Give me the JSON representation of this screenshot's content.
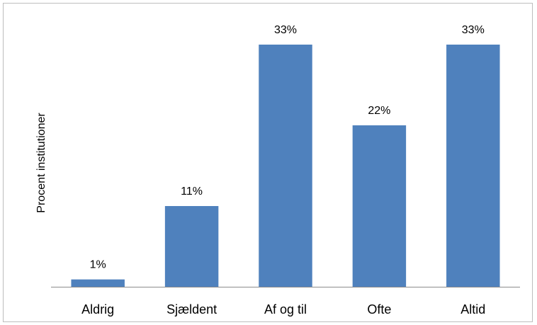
{
  "chart_data": {
    "type": "bar",
    "categories": [
      "Aldrig",
      "Sjældent",
      "Af og til",
      "Ofte",
      "Altid"
    ],
    "values": [
      1,
      11,
      33,
      22,
      33
    ],
    "data_labels": [
      "1%",
      "11%",
      "33%",
      "22%",
      "33%"
    ],
    "title": "",
    "xlabel": "",
    "ylabel": "Procent institutioner",
    "ylim": [
      0,
      33
    ],
    "grid": false,
    "legend": "none",
    "bar_color": "#4f81bd",
    "axis_color": "#8c8c8c"
  }
}
